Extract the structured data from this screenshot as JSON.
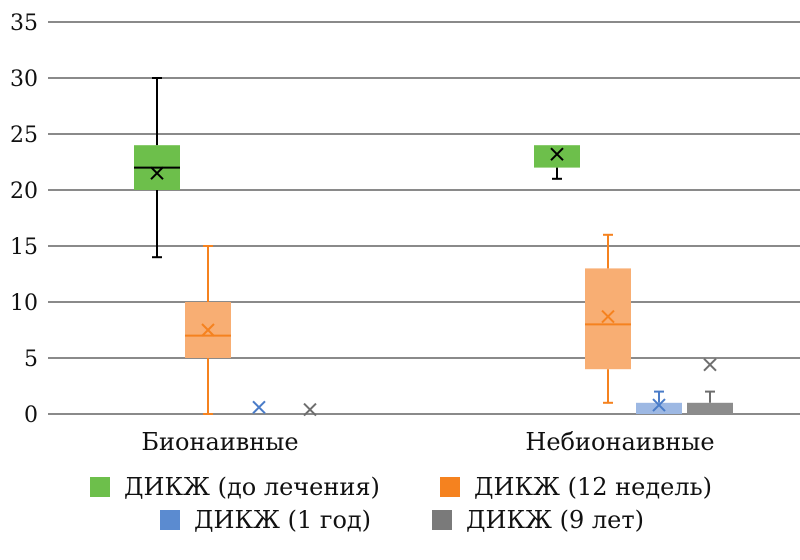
{
  "chart_data": {
    "type": "box",
    "title": "",
    "xlabel": "",
    "ylabel": "",
    "ylim": [
      0,
      35
    ],
    "yticks": [
      0,
      5,
      10,
      15,
      20,
      25,
      30,
      35
    ],
    "grid": true,
    "legend_position": "bottom",
    "categories": [
      "Бионаивные",
      "Небионаивные"
    ],
    "series": [
      {
        "name": "ДИКЖ (до лечения)",
        "fill": "#6dbf4b",
        "line": "#000000",
        "boxes": [
          {
            "min": 14,
            "q1": 20,
            "median": 22,
            "q3": 24,
            "max": 30,
            "mean": 21.5
          },
          {
            "min": 21,
            "q1": 22,
            "median": 24,
            "q3": 24,
            "max": 24,
            "mean": 23.2
          }
        ]
      },
      {
        "name": "ДИКЖ (12 недель)",
        "fill": "#f8ae73",
        "line": "#f5821f",
        "legend_color": "#f5821f",
        "boxes": [
          {
            "min": 0,
            "q1": 5,
            "median": 7,
            "q3": 10,
            "max": 15,
            "mean": 7.5
          },
          {
            "min": 1,
            "q1": 4,
            "median": 8,
            "q3": 13,
            "max": 16,
            "mean": 8.7
          }
        ]
      },
      {
        "name": "ДИКЖ (1 год)",
        "fill": "#9db8e3",
        "line": "#4a7cc8",
        "legend_color": "#5b8bd0",
        "boxes": [
          {
            "min": 0,
            "q1": 0,
            "median": 0,
            "q3": 0,
            "max": 0,
            "mean": 0.6
          },
          {
            "min": 0,
            "q1": 0,
            "median": 0,
            "q3": 1,
            "max": 2,
            "mean": 0.8
          }
        ]
      },
      {
        "name": "ДИКЖ (9 лет)",
        "fill": "#8c8c8c",
        "line": "#6e6e6e",
        "legend_color": "#7a7a7a",
        "boxes": [
          {
            "min": 0,
            "q1": 0,
            "median": 0,
            "q3": 0,
            "max": 0,
            "mean": 0.4
          },
          {
            "min": 0,
            "q1": 0,
            "median": 0,
            "q3": 1,
            "max": 2,
            "mean": 4.4
          }
        ]
      }
    ]
  }
}
